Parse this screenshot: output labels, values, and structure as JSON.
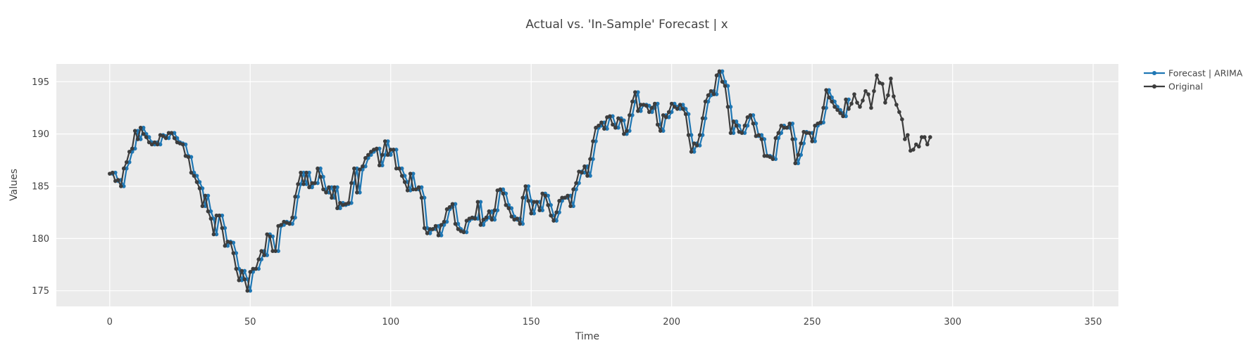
{
  "chart_data": {
    "type": "line",
    "title": "Actual vs. 'In-Sample' Forecast | x",
    "xlabel": "Time",
    "ylabel": "Values",
    "xlim": [
      -19,
      359
    ],
    "ylim": [
      173.5,
      196.7
    ],
    "xticks": [
      0,
      50,
      100,
      150,
      200,
      250,
      300,
      350
    ],
    "yticks": [
      175,
      180,
      185,
      190,
      195
    ],
    "grid": true,
    "legend_position": "top-right",
    "series": [
      {
        "name": "Forecast | ARIMA",
        "color": "#1f77b4",
        "marker": "circle",
        "x_start": 1,
        "values": [
          186.2,
          186.3,
          185.5,
          185.6,
          185,
          186.7,
          187.3,
          188.3,
          188.6,
          190.3,
          189.5,
          190.6,
          190,
          189.7,
          189.2,
          189,
          189.2,
          189,
          189.9,
          189.8,
          189.6,
          190.1,
          190.1,
          189.6,
          189.2,
          189.1,
          189,
          187.9,
          187.8,
          186.3,
          186,
          185.4,
          184.8,
          183.1,
          184.1,
          182.6,
          181.9,
          180.4,
          182.2,
          182.2,
          181,
          179.3,
          179.7,
          179.6,
          178.6,
          177.1,
          176,
          176.9,
          176.1,
          175,
          176.8,
          177.1,
          177.1,
          178,
          178.8,
          178.4,
          180.4,
          180.2,
          178.8,
          178.8,
          181.2,
          181.3,
          181.6,
          181.5,
          181.4,
          182,
          184,
          185.2,
          186.3,
          185.2,
          186.3,
          184.9,
          185.3,
          185.3,
          186.7,
          185.9,
          184.7,
          184.4,
          184.9,
          183.9,
          184.9,
          182.9,
          183.4,
          183.2,
          183.3,
          183.4,
          185.3,
          186.7,
          184.4,
          186.6,
          186.9,
          187.7,
          188,
          188.3,
          188.5,
          188.6,
          187,
          188,
          189.3,
          188,
          188.5,
          188.5,
          186.7,
          186.7,
          186,
          185.4,
          184.6,
          186.2,
          184.7,
          184.7,
          184.9,
          183.9,
          181,
          180.5,
          180.9,
          180.9,
          181.2,
          180.3,
          181.3,
          181.6,
          182.8,
          183,
          183.3,
          181.4,
          180.9,
          180.7,
          180.6,
          181.7,
          181.9,
          182,
          181.9,
          183.5,
          181.3,
          181.8,
          182,
          182.6,
          181.8,
          182.7,
          184.6,
          184.7,
          184.3,
          183.2,
          182.9,
          182.1,
          181.8,
          181.9,
          181.4,
          183.9,
          185,
          183.6,
          182.4,
          183.5,
          183.5,
          182.7,
          184.3,
          184.1,
          183.2,
          182.2,
          181.7,
          182.5,
          183.6,
          183.9,
          183.9,
          184.1,
          183.1,
          184.7,
          185.3,
          186.4,
          186.3,
          186.9,
          186,
          187.6,
          189.3,
          190.6,
          190.8,
          191.1,
          190.5,
          191.6,
          191.7,
          190.9,
          190.6,
          191.5,
          191.3,
          190,
          190.3,
          191.8,
          193.1,
          194,
          192.2,
          192.8,
          192.8,
          192.7,
          192.1,
          192.5,
          192.9,
          190.9,
          190.3,
          191.8,
          191.6,
          192.1,
          192.9,
          192.6,
          192.4,
          192.8,
          192.4,
          191.9,
          189.9,
          188.3,
          189.1,
          188.9,
          189.9,
          191.5,
          193.1,
          193.7,
          194.1,
          193.8,
          195.6,
          196,
          195,
          194.6,
          192.6,
          190.1,
          191.2,
          190.8,
          190.2,
          190.1,
          190.8,
          191.6,
          191.8,
          191,
          189.8,
          189.9,
          189.5,
          187.9,
          187.9,
          187.8,
          187.6,
          189.6,
          190.1,
          190.8,
          190.6,
          190.6,
          191,
          189.5,
          187.2,
          188,
          189.1,
          190.2,
          190.1,
          190.1,
          189.3,
          190.8,
          191,
          191.1,
          192.5,
          194.2,
          193.5,
          193.1,
          192.6,
          192.3,
          192,
          191.7,
          193.3
        ]
      },
      {
        "name": "Original",
        "color": "#3d3d3d",
        "marker": "circle",
        "x_start": 0,
        "values": [
          186.2,
          186.3,
          185.5,
          185.6,
          185,
          186.7,
          187.3,
          188.3,
          188.6,
          190.3,
          189.5,
          190.6,
          190,
          189.7,
          189.2,
          189,
          189.2,
          189,
          189.9,
          189.8,
          189.6,
          190.1,
          190.1,
          189.6,
          189.2,
          189.1,
          189,
          187.9,
          187.8,
          186.3,
          186,
          185.4,
          184.8,
          183.1,
          184.1,
          182.6,
          181.9,
          180.4,
          182.2,
          182.2,
          181,
          179.3,
          179.7,
          179.6,
          178.6,
          177.1,
          176,
          176.9,
          176.1,
          175,
          176.8,
          177.1,
          177.1,
          178,
          178.8,
          178.4,
          180.4,
          180.2,
          178.8,
          178.8,
          181.2,
          181.3,
          181.6,
          181.5,
          181.4,
          182,
          184,
          185.2,
          186.3,
          185.2,
          186.3,
          184.9,
          185.3,
          185.3,
          186.7,
          185.9,
          184.7,
          184.4,
          184.9,
          183.9,
          184.9,
          182.9,
          183.4,
          183.2,
          183.3,
          183.4,
          185.3,
          186.7,
          184.4,
          186.6,
          186.9,
          187.7,
          188,
          188.3,
          188.5,
          188.6,
          187,
          188,
          189.3,
          188,
          188.5,
          188.5,
          186.7,
          186.7,
          186,
          185.4,
          184.6,
          186.2,
          184.7,
          184.7,
          184.9,
          183.9,
          181,
          180.5,
          180.9,
          180.9,
          181.2,
          180.3,
          181.3,
          181.6,
          182.8,
          183,
          183.3,
          181.4,
          180.9,
          180.7,
          180.6,
          181.7,
          181.9,
          182,
          181.9,
          183.5,
          181.3,
          181.8,
          182,
          182.6,
          181.8,
          182.7,
          184.6,
          184.7,
          184.3,
          183.2,
          182.9,
          182.1,
          181.8,
          181.9,
          181.4,
          183.9,
          185,
          183.6,
          182.4,
          183.5,
          183.5,
          182.7,
          184.3,
          184.1,
          183.2,
          182.2,
          181.7,
          182.5,
          183.6,
          183.9,
          183.9,
          184.1,
          183.1,
          184.7,
          185.3,
          186.4,
          186.3,
          186.9,
          186,
          187.6,
          189.3,
          190.6,
          190.8,
          191.1,
          190.5,
          191.6,
          191.7,
          190.9,
          190.6,
          191.5,
          191.3,
          190,
          190.3,
          191.8,
          193.1,
          194,
          192.2,
          192.8,
          192.8,
          192.7,
          192.1,
          192.5,
          192.9,
          190.9,
          190.3,
          191.8,
          191.6,
          192.1,
          192.9,
          192.6,
          192.4,
          192.8,
          192.4,
          191.9,
          189.9,
          188.3,
          189.1,
          188.9,
          189.9,
          191.5,
          193.1,
          193.7,
          194.1,
          193.8,
          195.6,
          196,
          195,
          194.6,
          192.6,
          190.1,
          191.2,
          190.8,
          190.2,
          190.1,
          190.8,
          191.6,
          191.8,
          191,
          189.8,
          189.9,
          189.5,
          187.9,
          187.9,
          187.8,
          187.6,
          189.6,
          190.1,
          190.8,
          190.6,
          190.6,
          191,
          189.5,
          187.2,
          188,
          189.1,
          190.2,
          190.1,
          190.1,
          189.3,
          190.8,
          191,
          191.1,
          192.5,
          194.2,
          193.5,
          193.1,
          192.6,
          192.3,
          192,
          191.7,
          193.3,
          192.4,
          192.9,
          193.8,
          193,
          192.6,
          193.2,
          194.1,
          193.8,
          192.5,
          194.1,
          195.6,
          194.9,
          194.8,
          193,
          193.7,
          195.3,
          193.6,
          192.8,
          192.1,
          191.4,
          189.5,
          189.9,
          188.4,
          188.5,
          189,
          188.8,
          189.7,
          189.7,
          189,
          189.7
        ]
      }
    ]
  }
}
